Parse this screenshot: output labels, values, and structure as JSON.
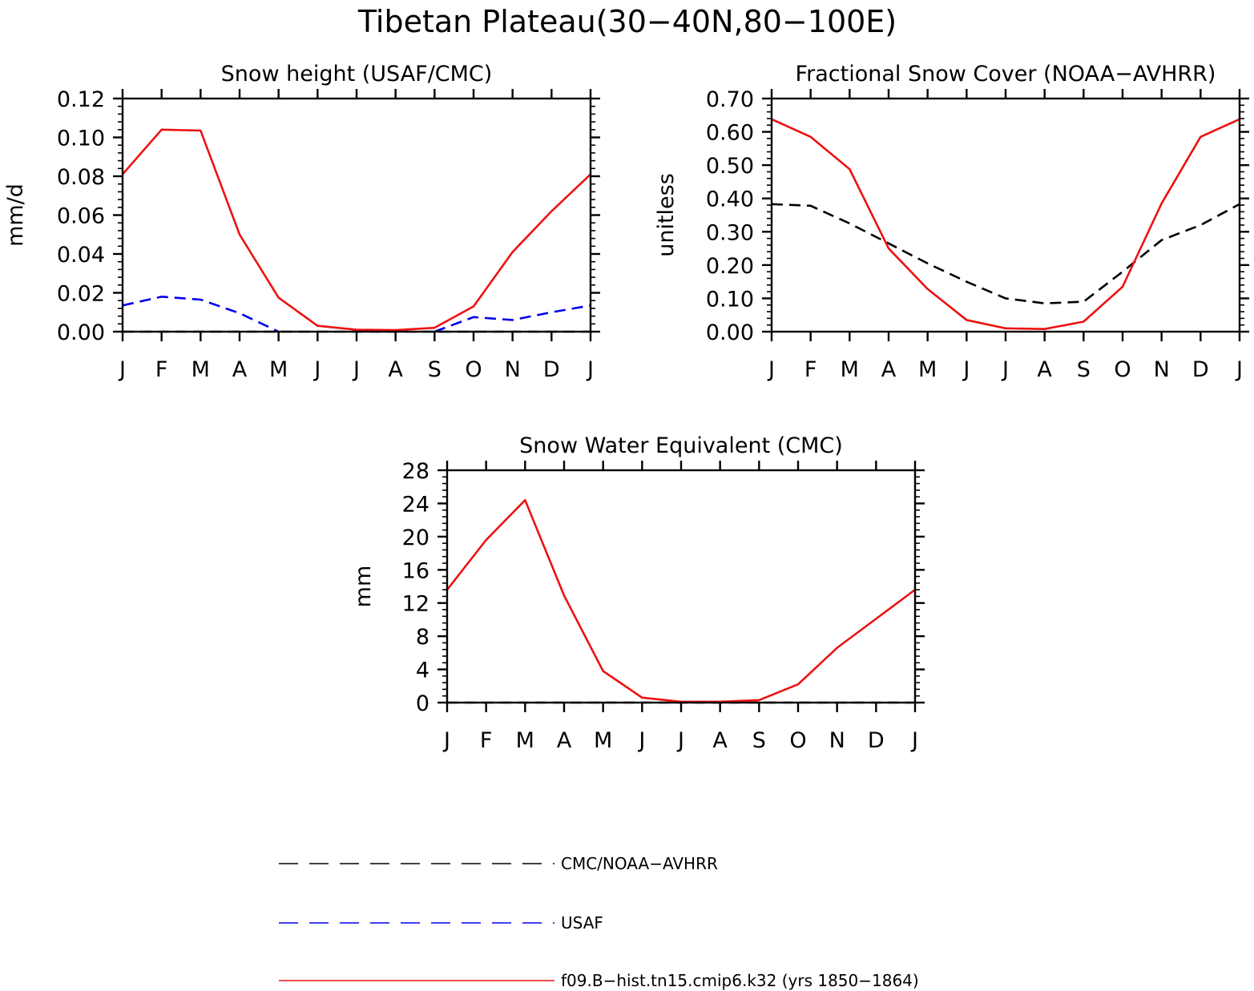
{
  "figure": {
    "title": "Tibetan Plateau(30−40N,80−100E)"
  },
  "chart_data": [
    {
      "type": "line",
      "title": "Snow height (USAF/CMC)",
      "xlabel": "",
      "ylabel": "mm/d",
      "categories": [
        "J",
        "F",
        "M",
        "A",
        "M",
        "J",
        "J",
        "A",
        "S",
        "O",
        "N",
        "D",
        "J"
      ],
      "ylim": [
        0,
        0.12
      ],
      "yticks": [
        0.0,
        0.02,
        0.04,
        0.06,
        0.08,
        0.1,
        0.12
      ],
      "ytick_labels": [
        "0.00",
        "0.02",
        "0.04",
        "0.06",
        "0.08",
        "0.10",
        "0.12"
      ],
      "series": [
        {
          "name": "CMC/NOAA-AVHRR",
          "color": "#000000",
          "dash": "dashed",
          "values": [
            0.0,
            0.0,
            0.0,
            0.0,
            0.0,
            0.0,
            0.0,
            0.0,
            0.0,
            0.0,
            0.0,
            0.0,
            0.0
          ]
        },
        {
          "name": "USAF",
          "color": "#0000ee",
          "dash": "dashed",
          "values": [
            0.0135,
            0.018,
            0.0165,
            0.0095,
            0.0,
            null,
            null,
            null,
            0.0,
            0.0075,
            0.006,
            0.01,
            0.0135
          ]
        },
        {
          "name": "f09.B−hist.tn15.cmip6.k32 (yrs 1850−1864)",
          "color": "#ee1111",
          "dash": "solid",
          "values": [
            0.081,
            0.104,
            0.1035,
            0.05,
            0.0175,
            0.003,
            0.001,
            0.0008,
            0.002,
            0.013,
            0.041,
            0.062,
            0.081
          ]
        }
      ]
    },
    {
      "type": "line",
      "title": "Fractional Snow Cover (NOAA−AVHRR)",
      "xlabel": "",
      "ylabel": "unitless",
      "categories": [
        "J",
        "F",
        "M",
        "A",
        "M",
        "J",
        "J",
        "A",
        "S",
        "O",
        "N",
        "D",
        "J"
      ],
      "ylim": [
        0,
        0.7
      ],
      "yticks": [
        0.0,
        0.1,
        0.2,
        0.3,
        0.4,
        0.5,
        0.6,
        0.7
      ],
      "ytick_labels": [
        "0.00",
        "0.10",
        "0.20",
        "0.30",
        "0.40",
        "0.50",
        "0.60",
        "0.70"
      ],
      "series": [
        {
          "name": "CMC/NOAA-AVHRR",
          "color": "#000000",
          "dash": "dashed",
          "values": [
            0.383,
            0.378,
            0.325,
            0.265,
            0.205,
            0.15,
            0.1,
            0.085,
            0.09,
            0.18,
            0.275,
            0.32,
            0.383
          ]
        },
        {
          "name": "f09.B−hist.tn15.cmip6.k32 (yrs 1850−1864)",
          "color": "#ee1111",
          "dash": "solid",
          "values": [
            0.638,
            0.585,
            0.488,
            0.25,
            0.128,
            0.035,
            0.01,
            0.008,
            0.03,
            0.135,
            0.385,
            0.585,
            0.638
          ]
        }
      ]
    },
    {
      "type": "line",
      "title": "Snow Water Equivalent (CMC)",
      "xlabel": "",
      "ylabel": "mm",
      "categories": [
        "J",
        "F",
        "M",
        "A",
        "M",
        "J",
        "J",
        "A",
        "S",
        "O",
        "N",
        "D",
        "J"
      ],
      "ylim": [
        0,
        28
      ],
      "yticks": [
        0,
        4,
        8,
        12,
        16,
        20,
        24,
        28
      ],
      "ytick_labels": [
        "0",
        "4",
        "8",
        "12",
        "16",
        "20",
        "24",
        "28"
      ],
      "series": [
        {
          "name": "CMC/NOAA-AVHRR",
          "color": "#000000",
          "dash": "dashed",
          "values": [
            0,
            0,
            0,
            0,
            0,
            0,
            0,
            0,
            0,
            0,
            0,
            0,
            0
          ]
        },
        {
          "name": "f09.B−hist.tn15.cmip6.k32 (yrs 1850−1864)",
          "color": "#ee1111",
          "dash": "solid",
          "values": [
            13.6,
            19.6,
            24.4,
            12.9,
            3.8,
            0.6,
            0.1,
            0.1,
            0.3,
            2.2,
            6.6,
            10.1,
            13.6
          ]
        }
      ]
    }
  ],
  "legend": {
    "placement": "bottom-center",
    "entries": [
      {
        "label": "CMC/NOAA−AVHRR",
        "color": "#000000",
        "dash": "dashed"
      },
      {
        "label": "USAF",
        "color": "#0000ee",
        "dash": "dashed"
      },
      {
        "label": "f09.B−hist.tn15.cmip6.k32 (yrs 1850−1864)",
        "color": "#ee1111",
        "dash": "solid"
      }
    ]
  }
}
